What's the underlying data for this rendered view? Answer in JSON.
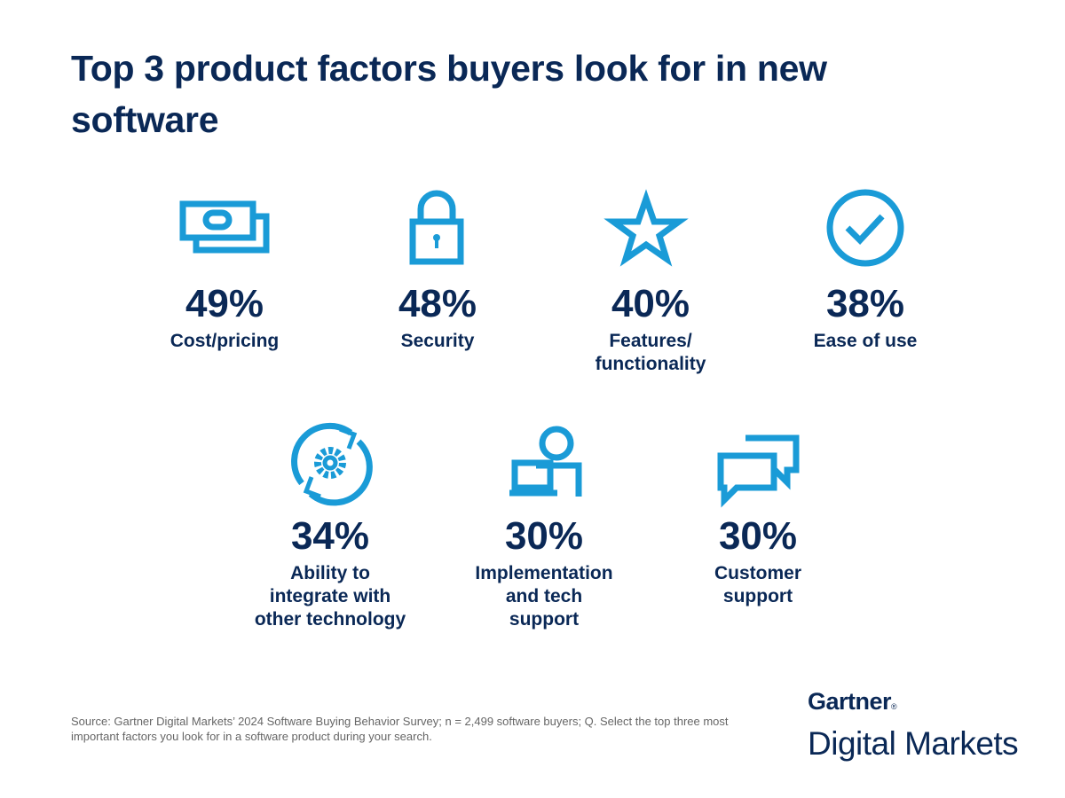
{
  "header": {
    "title": "Top 3 product factors buyers look for in new software"
  },
  "items": [
    {
      "value_label": "49%",
      "label_lines": [
        "Cost/pricing"
      ]
    },
    {
      "value_label": "48%",
      "label_lines": [
        "Security"
      ]
    },
    {
      "value_label": "40%",
      "label_lines": [
        "Features/",
        "functionality"
      ]
    },
    {
      "value_label": "38%",
      "label_lines": [
        "Ease of use"
      ]
    },
    {
      "value_label": "34%",
      "label_lines": [
        "Ability to",
        "integrate with",
        "other technology"
      ]
    },
    {
      "value_label": "30%",
      "label_lines": [
        "Implementation",
        "and tech",
        "support"
      ]
    },
    {
      "value_label": "30%",
      "label_lines": [
        "Customer",
        "support"
      ]
    }
  ],
  "footer": {
    "source": "Source: Gartner Digital Markets’ 2024 Software Buying Behavior Survey; n = 2,499 software buyers; Q. Select the top three most important factors you look for in a software product during your search.",
    "brand": "Gartner",
    "trademark": "®",
    "subbrand": "Digital Markets"
  }
}
